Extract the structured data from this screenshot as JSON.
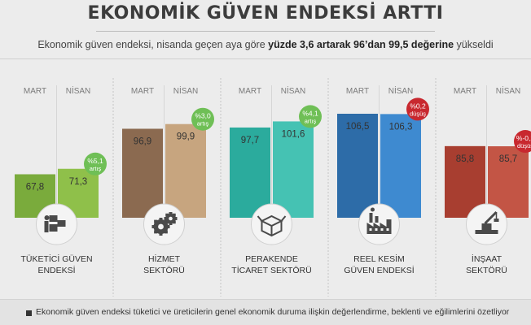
{
  "header": {
    "title": "EKONOMİK GÜVEN ENDEKSİ ARTTI",
    "subtitle_pre": "Ekonomik güven endeksi, nisanda geçen aya göre ",
    "subtitle_bold": "yüzde 3,6 artarak 96’dan 99,5 değerine",
    "subtitle_post": " yükseldi"
  },
  "footer": {
    "note": "Ekonomik güven endeksi tüketici ve üreticilerin genel ekonomik duruma ilişkin değerlendirme, beklenti ve eğilimlerini özetliyor"
  },
  "chart_data": {
    "type": "bar",
    "series_names": [
      "MART",
      "NİSAN"
    ],
    "groups": [
      {
        "label_lines": [
          "TÜKETİCİ GÜVEN",
          "ENDEKSİ"
        ],
        "values": [
          67.8,
          71.3
        ],
        "value_labels": [
          "67,8",
          "71,3"
        ],
        "change_value": "%5,1",
        "change_word": "artış",
        "direction": "up",
        "icon": "boxes-icon",
        "colors": [
          "#7aab3c",
          "#8fc04a"
        ]
      },
      {
        "label_lines": [
          "HİZMET",
          "SEKTÖRÜ"
        ],
        "values": [
          96.9,
          99.9
        ],
        "value_labels": [
          "96,9",
          "99,9"
        ],
        "change_value": "%3,0",
        "change_word": "artış",
        "direction": "up",
        "icon": "gears-icon",
        "colors": [
          "#8b6a50",
          "#c7a57f"
        ]
      },
      {
        "label_lines": [
          "PERAKENDE",
          "TİCARET SEKTÖRÜ"
        ],
        "values": [
          97.7,
          101.6
        ],
        "value_labels": [
          "97,7",
          "101,6"
        ],
        "change_value": "%4,1",
        "change_word": "artış",
        "direction": "up",
        "icon": "box-icon",
        "colors": [
          "#2bab9d",
          "#45c2b3"
        ]
      },
      {
        "label_lines": [
          "REEL KESİM",
          "GÜVEN ENDEKSİ"
        ],
        "values": [
          106.5,
          106.3
        ],
        "value_labels": [
          "106,5",
          "106,3"
        ],
        "change_value": "%0,2",
        "change_word": "düşüş",
        "direction": "down",
        "icon": "factory-icon",
        "colors": [
          "#2d6ca8",
          "#3e8ad0"
        ]
      },
      {
        "label_lines": [
          "İNŞAAT",
          "SEKTÖRÜ"
        ],
        "values": [
          85.8,
          85.7
        ],
        "value_labels": [
          "85,8",
          "85,7"
        ],
        "change_value": "%-0,2",
        "change_word": "düşüş",
        "direction": "down",
        "icon": "crane-icon",
        "colors": [
          "#a83e30",
          "#c35545"
        ]
      }
    ],
    "colors": {
      "up_badge": "#6fbf56",
      "down_badge": "#c8282f"
    }
  }
}
